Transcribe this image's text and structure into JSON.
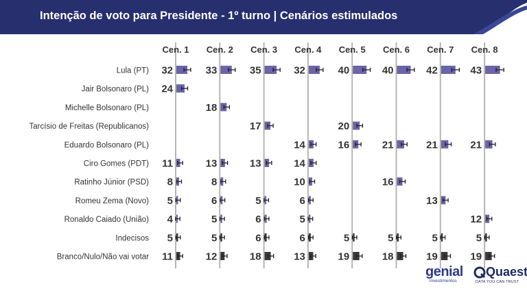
{
  "header": {
    "title": "Intenção de voto para Presidente - 1º turno | Cenários estimulados"
  },
  "colors": {
    "header_bg": "#272f6f",
    "header_accent": "#3b4794",
    "bar_purple": "#6b64a8",
    "bar_dark": "#3a3a3a",
    "error_bar": "#222222",
    "axis_line": "#b5b5b5",
    "text": "#333333"
  },
  "logos": {
    "genial": {
      "name": "genial",
      "sub": "investimentos"
    },
    "quaest": {
      "name": "Quaest",
      "sub": "DATA YOU CAN TRUST"
    }
  },
  "chart_data": {
    "type": "bar",
    "title": "Intenção de voto para Presidente - 1º turno | Cenários estimulados",
    "scenarios": [
      "Cen. 1",
      "Cen. 2",
      "Cen. 3",
      "Cen. 4",
      "Cen. 5",
      "Cen. 6",
      "Cen. 7",
      "Cen. 8"
    ],
    "categories": [
      "Lula (PT)",
      "Jair Bolsonaro (PL)",
      "Michelle Bolsonaro (PL)",
      "Tarcísio de Freitas (Republicanos)",
      "Eduardo Bolsonaro (PL)",
      "Ciro Gomes (PDT)",
      "Ratinho Júnior (PSD)",
      "Romeu Zema (Novo)",
      "Ronaldo Caiado (União)",
      "Indecisos",
      "Branco/Nulo/Não vai votar"
    ],
    "values": [
      [
        32,
        33,
        35,
        32,
        40,
        40,
        42,
        43
      ],
      [
        24,
        null,
        null,
        null,
        null,
        null,
        null,
        null
      ],
      [
        null,
        18,
        null,
        null,
        null,
        null,
        null,
        null
      ],
      [
        null,
        null,
        17,
        null,
        20,
        null,
        null,
        null
      ],
      [
        null,
        null,
        null,
        14,
        16,
        21,
        21,
        21
      ],
      [
        11,
        13,
        13,
        14,
        null,
        null,
        null,
        null
      ],
      [
        8,
        8,
        null,
        10,
        null,
        16,
        null,
        null
      ],
      [
        5,
        6,
        5,
        6,
        null,
        null,
        13,
        null
      ],
      [
        4,
        5,
        6,
        5,
        null,
        null,
        null,
        12
      ],
      [
        5,
        5,
        6,
        6,
        5,
        5,
        5,
        5
      ],
      [
        11,
        12,
        18,
        13,
        19,
        18,
        19,
        19
      ]
    ],
    "dark_rows": [
      "Indecisos",
      "Branco/Nulo/Não vai votar"
    ],
    "error_bars": true,
    "grid": false,
    "legend": "none"
  }
}
